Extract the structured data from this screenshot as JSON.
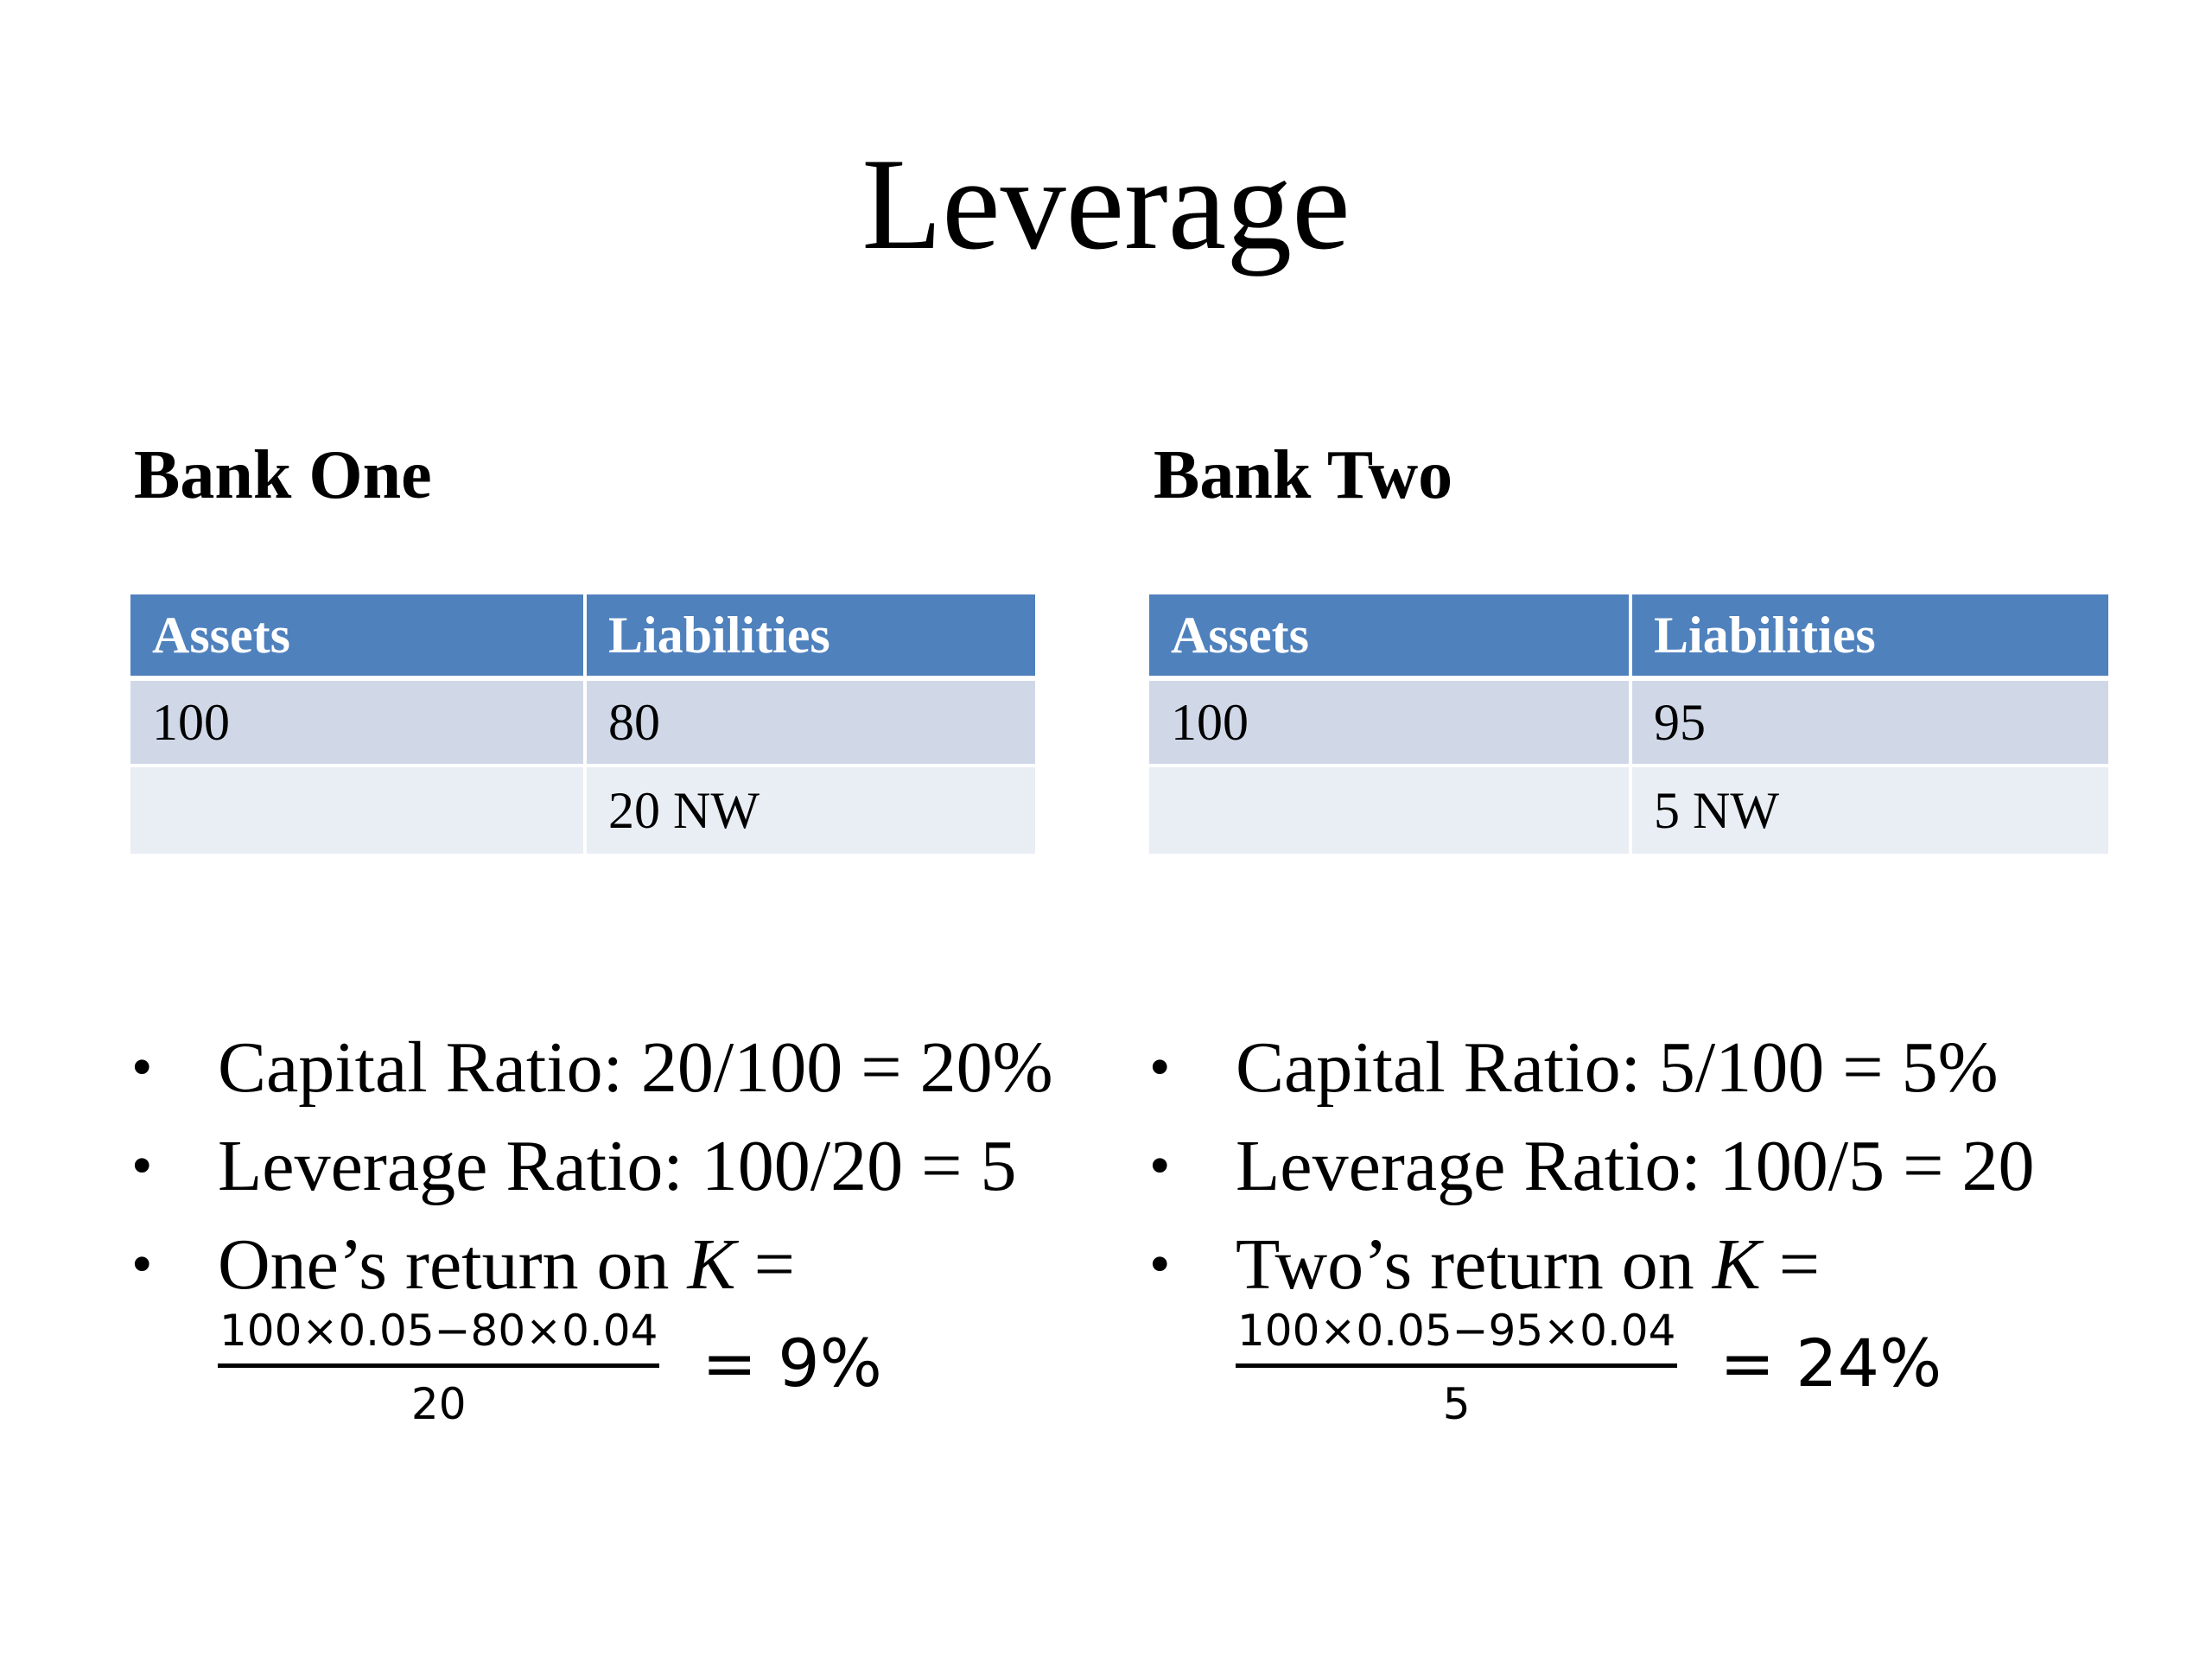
{
  "slide": {
    "title": "Leverage"
  },
  "bank_one": {
    "heading": "Bank One",
    "table": {
      "headers": [
        "Assets",
        "Liabilities"
      ],
      "rows": [
        [
          "100",
          "80"
        ],
        [
          "",
          "20 NW"
        ]
      ]
    },
    "bullets": {
      "capital_ratio": "Capital Ratio:  20/100 = 20%",
      "leverage_ratio": "Leverage Ratio:  100/20 = 5",
      "return_prefix": "One’s return on ",
      "return_var": "K",
      "return_eq": " =",
      "numerator": "100×0.05−80×0.04",
      "denominator": "20",
      "result": "= 9%"
    }
  },
  "bank_two": {
    "heading": "Bank Two",
    "table": {
      "headers": [
        "Assets",
        "Liabilities"
      ],
      "rows": [
        [
          "100",
          "95"
        ],
        [
          "",
          "5  NW"
        ]
      ]
    },
    "bullets": {
      "capital_ratio": "Capital Ratio:  5/100 = 5%",
      "leverage_ratio": "Leverage Ratio:  100/5 = 20",
      "return_prefix": "Two’s return on ",
      "return_var": "K",
      "return_eq": " =",
      "numerator": "100×0.05−95×0.04",
      "denominator": "5",
      "result": "= 24%"
    }
  },
  "bullet_glyph": "•",
  "colors": {
    "table_header": "#4f81bd",
    "table_row_dark": "#d0d8e8",
    "table_row_light": "#e9edf4"
  }
}
